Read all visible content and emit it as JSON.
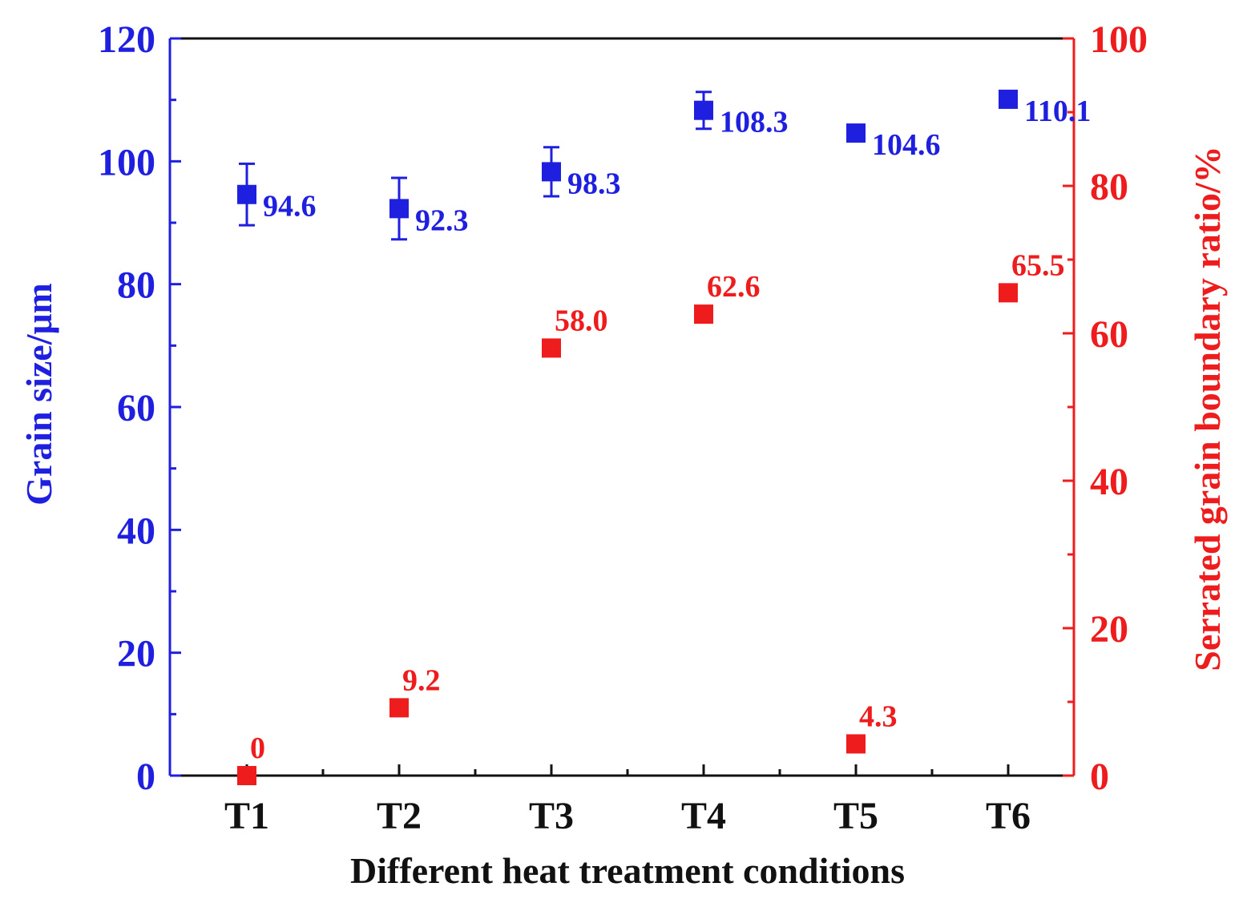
{
  "chart_data": {
    "type": "scatter",
    "categories": [
      "T1",
      "T2",
      "T3",
      "T4",
      "T5",
      "T6"
    ],
    "xlabel": "Different heat treatment conditions",
    "y_left": {
      "label": "Grain size/μm",
      "lim": [
        0,
        120
      ],
      "ticks": [
        0,
        20,
        40,
        60,
        80,
        100,
        120
      ],
      "color": "#1f1fe0"
    },
    "y_right": {
      "label": "Serrated grain boundary ratio/%",
      "lim": [
        0,
        100
      ],
      "ticks": [
        0,
        20,
        40,
        60,
        80,
        100
      ],
      "color": "#ee1c1c"
    },
    "series": [
      {
        "name": "Grain size",
        "axis": "left",
        "color": "#1f1fe0",
        "values": [
          94.6,
          92.3,
          98.3,
          108.3,
          104.6,
          110.1
        ],
        "error": [
          5.0,
          5.0,
          4.0,
          3.0,
          0,
          0
        ],
        "labels": [
          "94.6",
          "92.3",
          "98.3",
          "108.3",
          "104.6",
          "110.1"
        ]
      },
      {
        "name": "Serrated grain boundary ratio",
        "axis": "right",
        "color": "#ee1c1c",
        "values": [
          0,
          9.2,
          58.0,
          62.6,
          4.3,
          65.5
        ],
        "labels": [
          "0",
          "9.2",
          "58.0",
          "62.6",
          "4.3",
          "65.5"
        ]
      }
    ]
  }
}
